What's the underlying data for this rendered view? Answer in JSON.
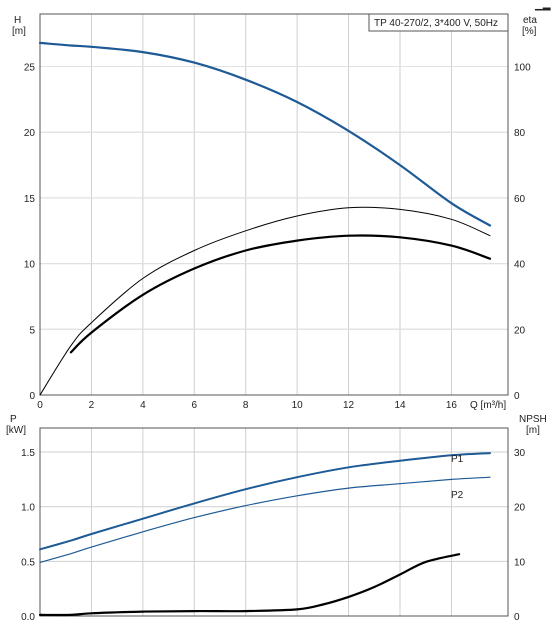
{
  "colors": {
    "blue": "#1e5a96",
    "black": "#000000",
    "grid": "#cfcfcf",
    "axis": "#555555"
  },
  "chart_data": [
    {
      "type": "line",
      "title": "TP 40-270/2, 3*400 V, 50Hz",
      "xlabel": "Q [m³/h]",
      "xlim": [
        0,
        18.2
      ],
      "xticks": [
        0,
        2,
        4,
        6,
        8,
        10,
        12,
        14,
        16
      ],
      "left_axis": {
        "label_top": "H",
        "label_unit": "[m]",
        "lim": [
          0,
          29
        ],
        "ticks": [
          0,
          5,
          10,
          15,
          20,
          25
        ]
      },
      "right_axis": {
        "label_top": "eta",
        "label_unit": "[%]",
        "lim": [
          0,
          116
        ],
        "ticks": [
          0,
          20,
          40,
          60,
          80,
          100
        ]
      },
      "grid": true,
      "series": [
        {
          "axis": "left",
          "color": "blue",
          "width": 2.2,
          "x": [
            0,
            1.2,
            2,
            4,
            6,
            8,
            10,
            12,
            14,
            16,
            17.5
          ],
          "y": [
            26.8,
            26.6,
            26.5,
            26.1,
            25.3,
            24.0,
            22.3,
            20.1,
            17.5,
            14.6,
            12.9
          ]
        },
        {
          "axis": "right",
          "color": "black",
          "width": 1.0,
          "x": [
            0,
            1.2,
            2,
            4,
            6,
            8,
            10,
            12,
            14,
            16,
            17.5
          ],
          "y": [
            0,
            15,
            22,
            35.5,
            44,
            50,
            54.5,
            57,
            56.5,
            53.5,
            48.5
          ]
        },
        {
          "axis": "right",
          "color": "black",
          "width": 2.2,
          "x": [
            1.2,
            2,
            4,
            6,
            8,
            10,
            12,
            14,
            16,
            17.5
          ],
          "y": [
            13,
            19,
            30.5,
            38.5,
            44,
            47,
            48.5,
            48,
            45.5,
            41.5
          ]
        }
      ]
    },
    {
      "type": "line",
      "left_axis": {
        "label_top": "P",
        "label_unit": "[kW]",
        "lim": [
          0,
          1.72
        ],
        "ticks": [
          0.0,
          0.5,
          1.0,
          1.5
        ],
        "tick_labels": [
          "0.0",
          "0.5",
          "1.0",
          "1.5"
        ]
      },
      "right_axis": {
        "label_top": "NPSH",
        "label_unit": "[m]",
        "lim": [
          0,
          34.4
        ],
        "ticks": [
          0,
          10,
          20,
          30
        ]
      },
      "xlim": [
        0,
        18.2
      ],
      "xticks": [
        0,
        2,
        4,
        6,
        8,
        10,
        12,
        14,
        16
      ],
      "grid": true,
      "series": [
        {
          "name": "P1",
          "axis": "left",
          "color": "blue",
          "width": 2.0,
          "x": [
            0,
            1.2,
            2,
            4,
            6,
            8,
            10,
            12,
            14,
            16,
            17.5
          ],
          "y": [
            0.61,
            0.69,
            0.75,
            0.89,
            1.03,
            1.16,
            1.27,
            1.36,
            1.42,
            1.47,
            1.49
          ]
        },
        {
          "name": "P2",
          "axis": "left",
          "color": "blue",
          "width": 1.2,
          "x": [
            0,
            1.2,
            2,
            4,
            6,
            8,
            10,
            12,
            14,
            16,
            17.5
          ],
          "y": [
            0.49,
            0.57,
            0.63,
            0.77,
            0.9,
            1.01,
            1.1,
            1.17,
            1.21,
            1.25,
            1.27
          ]
        },
        {
          "axis": "right",
          "color": "black",
          "width": 2.2,
          "x": [
            0,
            1.2,
            2,
            4,
            6,
            8,
            10,
            11,
            12,
            13,
            14,
            15,
            16.3
          ],
          "y": [
            0.2,
            0.2,
            0.5,
            0.8,
            0.9,
            0.9,
            1.2,
            2.1,
            3.5,
            5.3,
            7.6,
            9.9,
            11.3
          ]
        }
      ]
    }
  ]
}
